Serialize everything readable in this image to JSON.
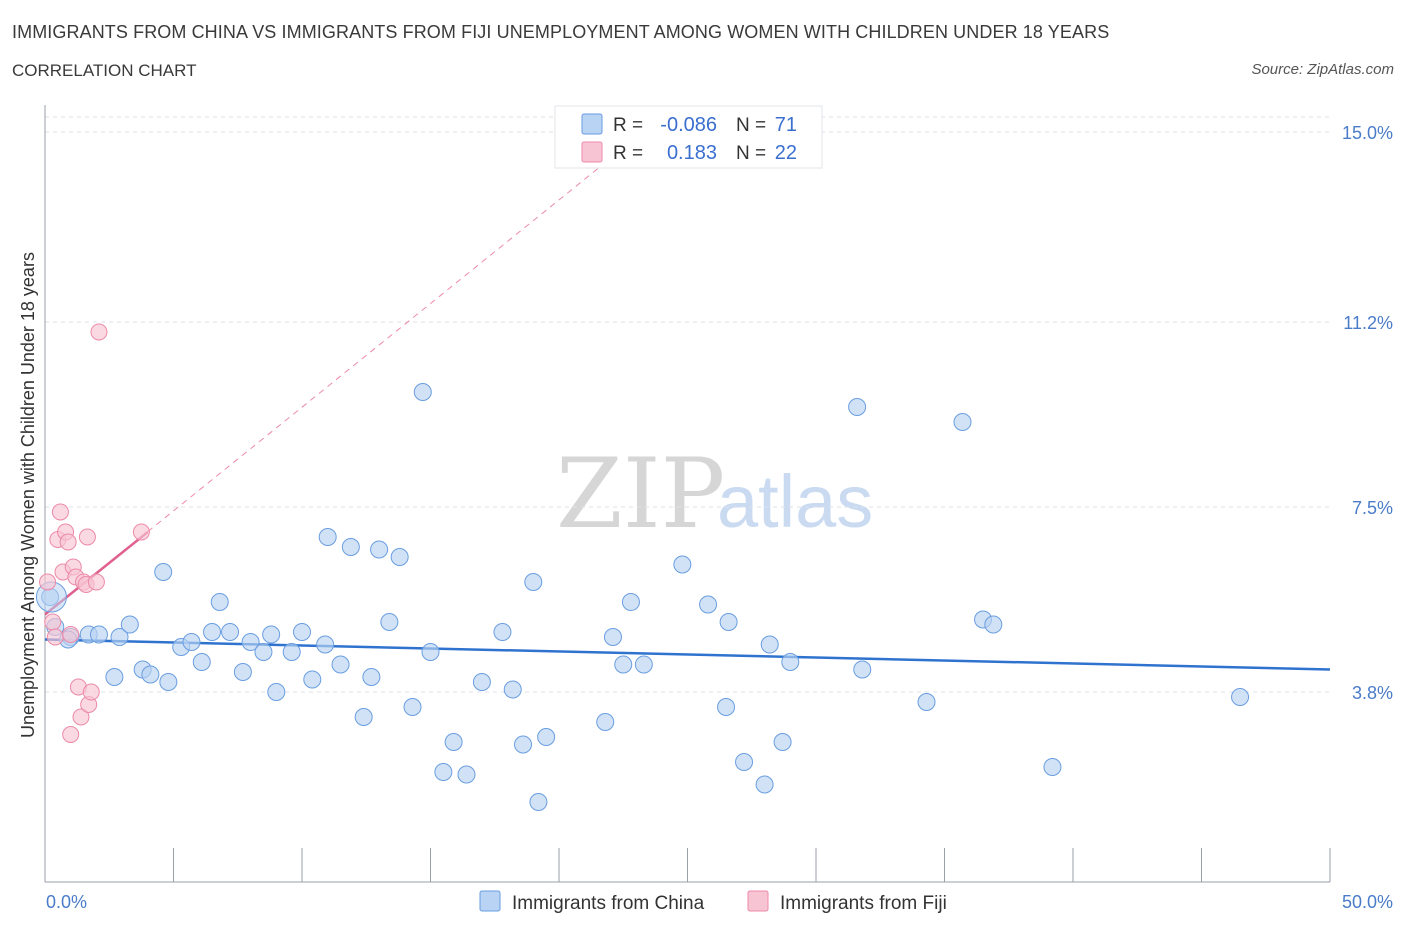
{
  "header": {
    "title": "IMMIGRANTS FROM CHINA VS IMMIGRANTS FROM FIJI UNEMPLOYMENT AMONG WOMEN WITH CHILDREN UNDER 18 YEARS",
    "subtitle": "CORRELATION CHART",
    "source": "Source: ZipAtlas.com"
  },
  "watermark": {
    "zip": "ZIP",
    "atlas": "atlas"
  },
  "colors": {
    "china_fill": "#b8d3f3",
    "china_stroke": "#6a9ee0",
    "china_line": "#2f73cf",
    "fiji_fill": "#f7c4d3",
    "fiji_stroke": "#ec8aa8",
    "fiji_line": "#e0608f",
    "tick": "#4a7cc9",
    "grid": "#dde2ea"
  },
  "legend": {
    "r_label": "R =",
    "n_label": "N =",
    "china": {
      "r": "-0.086",
      "n": "71"
    },
    "fiji": {
      "r": "0.183",
      "n": "22"
    }
  },
  "chart_data": {
    "type": "scatter",
    "title": "IMMIGRANTS FROM CHINA VS IMMIGRANTS FROM FIJI UNEMPLOYMENT AMONG WOMEN WITH CHILDREN UNDER 18 YEARS",
    "ylabel": "Unemployment Among Women with Children Under 18 years",
    "xlabel": "",
    "xlim": [
      0,
      50
    ],
    "ylim": [
      0,
      15.3
    ],
    "x_tick_labels": [
      "0.0%",
      "50.0%"
    ],
    "y_ticks": [
      3.8,
      7.5,
      11.2,
      15.0
    ],
    "y_tick_labels": [
      "3.8%",
      "7.5%",
      "11.2%",
      "15.0%"
    ],
    "grid": true,
    "legend_position": "top-center",
    "series": [
      {
        "name": "Immigrants from China",
        "r": -0.086,
        "n": 71,
        "trend": {
          "x": [
            0,
            50
          ],
          "y": [
            4.85,
            4.25
          ]
        },
        "points": [
          [
            0.2,
            5.7
          ],
          [
            0.4,
            5.1
          ],
          [
            1.0,
            4.9
          ],
          [
            1.7,
            4.95
          ],
          [
            2.1,
            4.95
          ],
          [
            2.7,
            4.1
          ],
          [
            2.9,
            4.9
          ],
          [
            3.3,
            5.15
          ],
          [
            3.8,
            4.25
          ],
          [
            4.1,
            4.15
          ],
          [
            4.8,
            4.0
          ],
          [
            4.6,
            6.2
          ],
          [
            5.3,
            4.7
          ],
          [
            5.7,
            4.8
          ],
          [
            6.1,
            4.4
          ],
          [
            6.5,
            5.0
          ],
          [
            6.8,
            5.6
          ],
          [
            7.2,
            5.0
          ],
          [
            7.7,
            4.2
          ],
          [
            8.0,
            4.8
          ],
          [
            8.5,
            4.6
          ],
          [
            8.8,
            4.95
          ],
          [
            9.0,
            3.8
          ],
          [
            9.6,
            4.6
          ],
          [
            10.0,
            5.0
          ],
          [
            10.4,
            4.05
          ],
          [
            10.9,
            4.75
          ],
          [
            11.0,
            6.9
          ],
          [
            11.5,
            4.35
          ],
          [
            11.9,
            6.7
          ],
          [
            12.4,
            3.3
          ],
          [
            12.7,
            4.1
          ],
          [
            13.0,
            6.65
          ],
          [
            13.4,
            5.2
          ],
          [
            13.8,
            6.5
          ],
          [
            14.3,
            3.5
          ],
          [
            14.7,
            9.8
          ],
          [
            15.0,
            4.6
          ],
          [
            15.5,
            2.2
          ],
          [
            15.9,
            2.8
          ],
          [
            16.4,
            2.15
          ],
          [
            17.0,
            4.0
          ],
          [
            17.8,
            5.0
          ],
          [
            18.2,
            3.85
          ],
          [
            18.6,
            2.75
          ],
          [
            19.0,
            6.0
          ],
          [
            19.2,
            1.6
          ],
          [
            19.5,
            2.9
          ],
          [
            21.8,
            3.2
          ],
          [
            22.1,
            4.9
          ],
          [
            22.5,
            4.35
          ],
          [
            22.8,
            5.6
          ],
          [
            23.3,
            4.35
          ],
          [
            24.8,
            6.35
          ],
          [
            25.8,
            5.55
          ],
          [
            26.5,
            3.5
          ],
          [
            26.6,
            5.2
          ],
          [
            27.2,
            2.4
          ],
          [
            28.0,
            1.95
          ],
          [
            28.2,
            4.75
          ],
          [
            28.7,
            2.8
          ],
          [
            29.0,
            4.4
          ],
          [
            31.6,
            9.5
          ],
          [
            31.8,
            4.25
          ],
          [
            34.3,
            3.6
          ],
          [
            35.7,
            9.2
          ],
          [
            36.5,
            5.25
          ],
          [
            36.9,
            5.15
          ],
          [
            39.2,
            2.3
          ],
          [
            46.5,
            3.7
          ],
          [
            0.9,
            4.85
          ]
        ]
      },
      {
        "name": "Immigrants from Fiji",
        "r": 0.183,
        "n": 22,
        "trend": {
          "x": [
            0,
            4.0
          ],
          "y": [
            5.35,
            7.0
          ]
        },
        "trend_extended": {
          "x": [
            0,
            24.0
          ],
          "y": [
            5.35,
            15.3
          ]
        },
        "points": [
          [
            0.1,
            6.0
          ],
          [
            0.3,
            5.2
          ],
          [
            0.4,
            4.9
          ],
          [
            0.5,
            6.85
          ],
          [
            0.6,
            7.4
          ],
          [
            0.7,
            6.2
          ],
          [
            0.8,
            7.0
          ],
          [
            0.9,
            6.8
          ],
          [
            1.0,
            4.95
          ],
          [
            1.1,
            6.3
          ],
          [
            1.2,
            6.1
          ],
          [
            1.3,
            3.9
          ],
          [
            1.4,
            3.3
          ],
          [
            1.5,
            6.0
          ],
          [
            1.6,
            5.95
          ],
          [
            1.65,
            6.9
          ],
          [
            1.7,
            3.55
          ],
          [
            1.8,
            3.8
          ],
          [
            2.0,
            6.0
          ],
          [
            2.1,
            11.0
          ],
          [
            3.75,
            7.0
          ],
          [
            1.0,
            2.95
          ]
        ]
      }
    ]
  },
  "bottom_legend": {
    "china_label": "Immigrants from China",
    "fiji_label": "Immigrants from Fiji"
  }
}
